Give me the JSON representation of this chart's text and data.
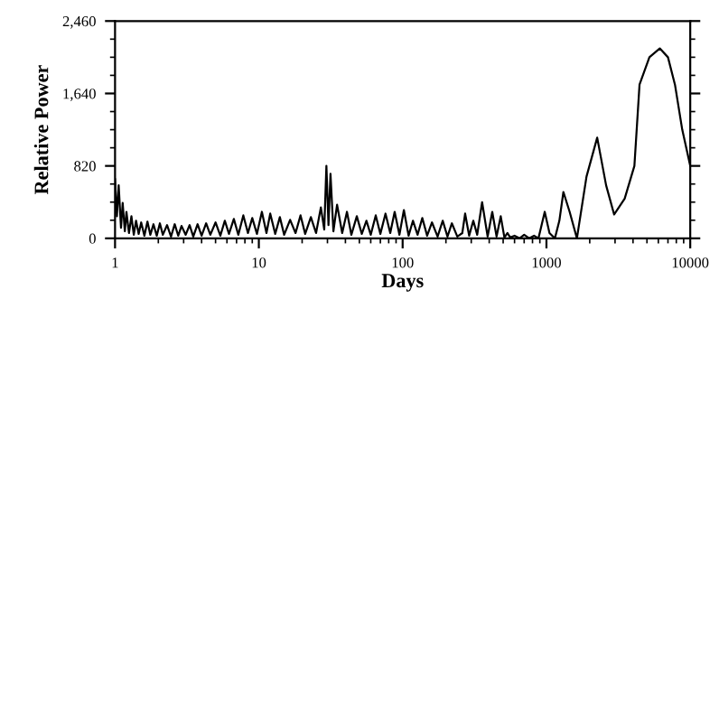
{
  "chart_data": {
    "type": "line",
    "xlabel": "Days",
    "ylabel": "Relative Power",
    "log": "x",
    "color": "#000000",
    "x": [
      1,
      1.03,
      1.06,
      1.1,
      1.13,
      1.17,
      1.2,
      1.25,
      1.3,
      1.35,
      1.4,
      1.46,
      1.52,
      1.6,
      1.68,
      1.76,
      1.85,
      1.95,
      2.05,
      2.15,
      2.3,
      2.45,
      2.6,
      2.75,
      2.9,
      3.1,
      3.3,
      3.5,
      3.75,
      4,
      4.3,
      4.6,
      5,
      5.4,
      5.8,
      6.2,
      6.7,
      7.2,
      7.8,
      8.4,
      9,
      9.7,
      10.5,
      11.3,
      12,
      13,
      14,
      15,
      16.5,
      18,
      19.5,
      21,
      23,
      25,
      27,
      28.5,
      29.5,
      30.5,
      31.5,
      33,
      35,
      38,
      41,
      44,
      48,
      52,
      56,
      60,
      65,
      70,
      76,
      82,
      88,
      95,
      102,
      110,
      118,
      127,
      137,
      148,
      160,
      175,
      190,
      205,
      220,
      240,
      260,
      272,
      290,
      310,
      330,
      357,
      390,
      420,
      450,
      481,
      510,
      536,
      560,
      600,
      650,
      700,
      760,
      820,
      880,
      973,
      1050,
      1145,
      1230,
      1312,
      1450,
      1629,
      1900,
      2254,
      2600,
      2957,
      3500,
      4090,
      4440,
      5200,
      6140,
      7000,
      7830,
      8800,
      10000
    ],
    "values": [
      670,
      250,
      600,
      120,
      400,
      80,
      300,
      60,
      250,
      40,
      200,
      50,
      180,
      30,
      190,
      40,
      160,
      30,
      170,
      40,
      150,
      20,
      160,
      30,
      140,
      40,
      150,
      20,
      160,
      30,
      170,
      40,
      180,
      30,
      200,
      50,
      220,
      40,
      260,
      60,
      230,
      50,
      300,
      60,
      280,
      50,
      240,
      40,
      210,
      60,
      260,
      50,
      240,
      60,
      350,
      100,
      820,
      150,
      730,
      80,
      380,
      60,
      300,
      40,
      250,
      50,
      200,
      40,
      260,
      50,
      280,
      60,
      300,
      40,
      320,
      30,
      200,
      40,
      230,
      30,
      180,
      20,
      200,
      20,
      170,
      20,
      60,
      280,
      30,
      200,
      40,
      410,
      20,
      300,
      20,
      250,
      10,
      60,
      10,
      30,
      0,
      40,
      0,
      30,
      0,
      300,
      60,
      0,
      200,
      525,
      300,
      0,
      700,
      1140,
      600,
      270,
      450,
      820,
      1740,
      2050,
      2150,
      2050,
      1740,
      1230,
      820
    ],
    "xlim": [
      1,
      10000
    ],
    "xticks": [
      1,
      10,
      100,
      1000,
      10000
    ],
    "ylim": [
      0,
      2460
    ],
    "yticks": [
      0,
      820,
      {
        "value": 1640,
        "label": "1,640"
      },
      {
        "value": 2460,
        "label": "2,460"
      }
    ],
    "grid": false
  }
}
